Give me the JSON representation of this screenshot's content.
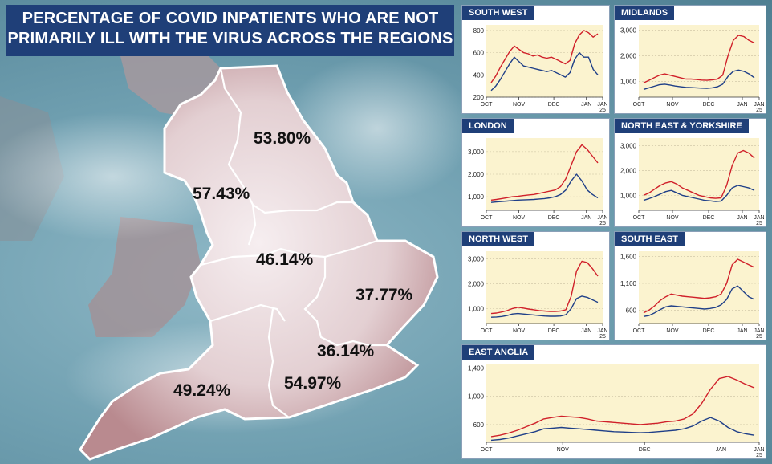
{
  "headline": {
    "line1": "PERCENTAGE OF COVID INPATIENTS WHO ARE NOT",
    "line2": "PRIMARILY ILL WITH THE VIRUS ACROSS THE REGIONS"
  },
  "map": {
    "region_percentages": [
      {
        "region": "North East & Yorkshire",
        "value": "53.80%"
      },
      {
        "region": "North West",
        "value": "57.43%"
      },
      {
        "region": "Midlands",
        "value": "46.14%"
      },
      {
        "region": "East of England",
        "value": "37.77%"
      },
      {
        "region": "London",
        "value": "36.14%"
      },
      {
        "region": "South East",
        "value": "54.97%"
      },
      {
        "region": "South West",
        "value": "49.24%"
      }
    ],
    "colors": {
      "land": "#d9b3b3",
      "border": "#ffffff"
    }
  },
  "colors": {
    "red": "#d0202a",
    "blue": "#1f3f88",
    "plot_bg": "#fbf3cf",
    "grid": "#c9c0a0"
  },
  "chart_data": [
    {
      "type": "line",
      "title": "SOUTH WEST",
      "x_tick_labels": [
        "OCT",
        "NOV",
        "DEC",
        "JAN",
        "JAN 25"
      ],
      "y_tick_labels": [
        "800",
        "600",
        "400",
        "200"
      ],
      "ylim": [
        200,
        850
      ],
      "series": [
        {
          "color": "red",
          "values": [
            330,
            390,
            470,
            540,
            610,
            660,
            630,
            600,
            590,
            570,
            580,
            560,
            550,
            560,
            540,
            520,
            500,
            530,
            680,
            760,
            800,
            780,
            740,
            770
          ]
        },
        {
          "color": "blue",
          "values": [
            260,
            300,
            360,
            430,
            500,
            560,
            520,
            480,
            470,
            460,
            450,
            440,
            430,
            440,
            420,
            400,
            380,
            420,
            540,
            600,
            560,
            560,
            450,
            400
          ]
        }
      ]
    },
    {
      "type": "line",
      "title": "MIDLANDS",
      "x_tick_labels": [
        "OCT",
        "NOV",
        "DEC",
        "JAN",
        "JAN 25"
      ],
      "y_tick_labels": [
        "3,000",
        "2,000",
        "1,000"
      ],
      "ylim": [
        400,
        3200
      ],
      "series": [
        {
          "color": "red",
          "values": [
            950,
            1050,
            1150,
            1250,
            1300,
            1250,
            1200,
            1150,
            1100,
            1100,
            1080,
            1060,
            1050,
            1070,
            1100,
            1250,
            2000,
            2600,
            2800,
            2750,
            2600,
            2500
          ]
        },
        {
          "color": "blue",
          "values": [
            700,
            760,
            820,
            880,
            900,
            870,
            830,
            800,
            780,
            770,
            760,
            750,
            740,
            760,
            800,
            900,
            1200,
            1400,
            1450,
            1400,
            1300,
            1150
          ]
        }
      ]
    },
    {
      "type": "line",
      "title": "LONDON",
      "x_tick_labels": [
        "OCT",
        "NOV",
        "DEC",
        "JAN",
        "JAN 25"
      ],
      "y_tick_labels": [
        "3,000",
        "2,000",
        "1,000"
      ],
      "ylim": [
        400,
        3600
      ],
      "series": [
        {
          "color": "red",
          "values": [
            850,
            880,
            920,
            960,
            1000,
            1020,
            1050,
            1080,
            1100,
            1150,
            1200,
            1250,
            1300,
            1450,
            1800,
            2400,
            3000,
            3300,
            3100,
            2800,
            2500
          ]
        },
        {
          "color": "blue",
          "values": [
            750,
            770,
            790,
            810,
            830,
            850,
            860,
            870,
            880,
            900,
            920,
            950,
            1000,
            1100,
            1300,
            1700,
            2000,
            1700,
            1300,
            1100,
            950
          ]
        }
      ]
    },
    {
      "type": "line",
      "title": "NORTH EAST & YORKSHIRE",
      "x_tick_labels": [
        "OCT",
        "NOV",
        "DEC",
        "JAN",
        "JAN 25"
      ],
      "y_tick_labels": [
        "3,000",
        "2,000",
        "1,000"
      ],
      "ylim": [
        400,
        3300
      ],
      "series": [
        {
          "color": "red",
          "values": [
            1000,
            1100,
            1250,
            1400,
            1500,
            1550,
            1450,
            1300,
            1200,
            1100,
            1000,
            950,
            900,
            880,
            900,
            1400,
            2200,
            2700,
            2800,
            2700,
            2500
          ]
        },
        {
          "color": "blue",
          "values": [
            800,
            870,
            950,
            1050,
            1150,
            1200,
            1100,
            1000,
            950,
            900,
            850,
            800,
            780,
            750,
            770,
            1000,
            1300,
            1400,
            1350,
            1300,
            1200
          ]
        }
      ]
    },
    {
      "type": "line",
      "title": "NORTH WEST",
      "x_tick_labels": [
        "OCT",
        "NOV",
        "DEC",
        "JAN",
        "JAN 25"
      ],
      "y_tick_labels": [
        "3,000",
        "2,000",
        "1,000"
      ],
      "ylim": [
        400,
        3300
      ],
      "series": [
        {
          "color": "red",
          "values": [
            800,
            820,
            860,
            920,
            1000,
            1050,
            1020,
            980,
            950,
            920,
            900,
            880,
            880,
            900,
            950,
            1500,
            2500,
            2900,
            2850,
            2600,
            2300
          ]
        },
        {
          "color": "blue",
          "values": [
            650,
            660,
            680,
            720,
            780,
            800,
            780,
            760,
            740,
            720,
            700,
            690,
            690,
            700,
            750,
            1000,
            1400,
            1500,
            1450,
            1350,
            1250
          ]
        }
      ]
    },
    {
      "type": "line",
      "title": "SOUTH EAST",
      "x_tick_labels": [
        "OCT",
        "NOV",
        "DEC",
        "JAN",
        "JAN 25"
      ],
      "y_tick_labels": [
        "1,600",
        "1,100",
        "600"
      ],
      "ylim": [
        350,
        1700
      ],
      "series": [
        {
          "color": "red",
          "values": [
            550,
            600,
            680,
            780,
            850,
            900,
            880,
            860,
            850,
            840,
            830,
            820,
            830,
            850,
            900,
            1100,
            1450,
            1550,
            1500,
            1450,
            1400
          ]
        },
        {
          "color": "blue",
          "values": [
            480,
            500,
            550,
            610,
            660,
            680,
            670,
            660,
            650,
            640,
            630,
            620,
            630,
            650,
            700,
            800,
            1000,
            1050,
            950,
            850,
            800
          ]
        }
      ]
    },
    {
      "type": "line",
      "title": "EAST ANGLIA",
      "x_tick_labels": [
        "OCT",
        "NOV",
        "DEC",
        "JAN",
        "JAN 25"
      ],
      "y_tick_labels": [
        "1,400",
        "1,000",
        "600"
      ],
      "ylim": [
        350,
        1450
      ],
      "series": [
        {
          "color": "red",
          "values": [
            430,
            450,
            480,
            520,
            570,
            620,
            680,
            700,
            720,
            710,
            700,
            680,
            650,
            640,
            630,
            620,
            610,
            600,
            610,
            620,
            640,
            650,
            680,
            750,
            900,
            1100,
            1250,
            1280,
            1230,
            1170,
            1120
          ]
        },
        {
          "color": "blue",
          "values": [
            380,
            390,
            410,
            440,
            470,
            500,
            540,
            550,
            560,
            550,
            540,
            530,
            520,
            510,
            500,
            495,
            490,
            485,
            490,
            500,
            510,
            520,
            540,
            580,
            650,
            700,
            650,
            560,
            500,
            470,
            450
          ]
        }
      ]
    }
  ]
}
